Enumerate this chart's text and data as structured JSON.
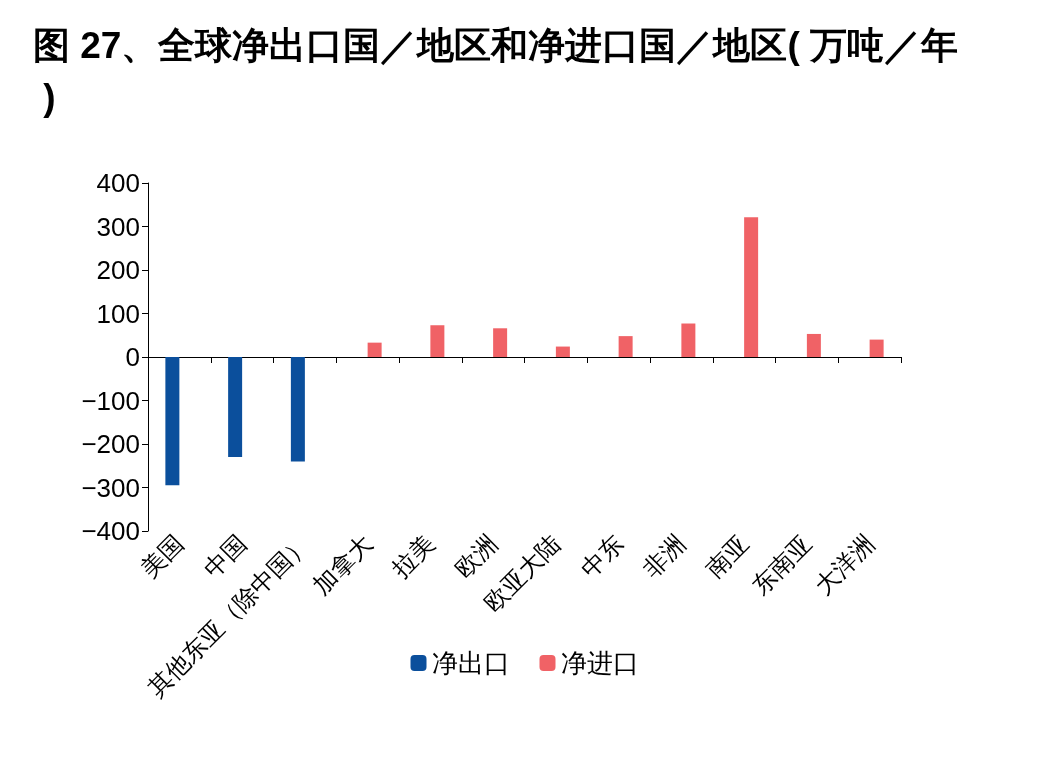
{
  "chart_data": {
    "type": "bar",
    "title": "图 27、全球净出口国／地区和净进口国／地区( 万吨／年 )",
    "categories": [
      "美国",
      "中国",
      "其他东亚（除中国）",
      "加拿大",
      "拉美",
      "欧洲",
      "欧亚大陆",
      "中东",
      "非洲",
      "南亚",
      "东南亚",
      "大洋洲"
    ],
    "series": [
      {
        "name": "净出口",
        "color": "#0b4f9c",
        "values": [
          -295,
          -230,
          -240,
          null,
          null,
          null,
          null,
          null,
          null,
          null,
          null,
          null
        ]
      },
      {
        "name": "净进口",
        "color": "#f06266",
        "values": [
          null,
          null,
          null,
          33,
          73,
          66,
          24,
          48,
          77,
          321,
          53,
          40
        ]
      }
    ],
    "ylim": [
      -400,
      400
    ],
    "yticks": [
      -400,
      -300,
      -200,
      -100,
      0,
      100,
      200,
      300,
      400
    ],
    "legend": "bottom"
  }
}
